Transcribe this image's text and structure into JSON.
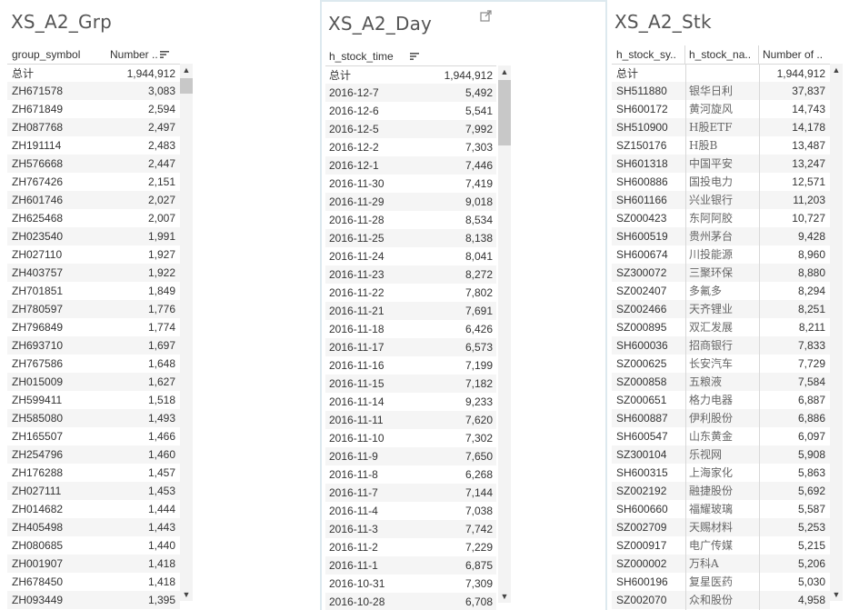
{
  "grp": {
    "title": "XS_A2_Grp",
    "col1": "group_symbol",
    "col2": "Number ..",
    "total_label": "总计",
    "total_value": "1,944,912",
    "rows": [
      [
        "ZH671578",
        "3,083"
      ],
      [
        "ZH671849",
        "2,594"
      ],
      [
        "ZH087768",
        "2,497"
      ],
      [
        "ZH191114",
        "2,483"
      ],
      [
        "ZH576668",
        "2,447"
      ],
      [
        "ZH767426",
        "2,151"
      ],
      [
        "ZH601746",
        "2,027"
      ],
      [
        "ZH625468",
        "2,007"
      ],
      [
        "ZH023540",
        "1,991"
      ],
      [
        "ZH027110",
        "1,927"
      ],
      [
        "ZH403757",
        "1,922"
      ],
      [
        "ZH701851",
        "1,849"
      ],
      [
        "ZH780597",
        "1,776"
      ],
      [
        "ZH796849",
        "1,774"
      ],
      [
        "ZH693710",
        "1,697"
      ],
      [
        "ZH767586",
        "1,648"
      ],
      [
        "ZH015009",
        "1,627"
      ],
      [
        "ZH599411",
        "1,518"
      ],
      [
        "ZH585080",
        "1,493"
      ],
      [
        "ZH165507",
        "1,466"
      ],
      [
        "ZH254796",
        "1,460"
      ],
      [
        "ZH176288",
        "1,457"
      ],
      [
        "ZH027111",
        "1,453"
      ],
      [
        "ZH014682",
        "1,444"
      ],
      [
        "ZH405498",
        "1,443"
      ],
      [
        "ZH080685",
        "1,440"
      ],
      [
        "ZH001907",
        "1,418"
      ],
      [
        "ZH678450",
        "1,418"
      ],
      [
        "ZH093449",
        "1,395"
      ]
    ]
  },
  "day": {
    "title": "XS_A2_Day",
    "col1": "h_stock_time",
    "total_label": "总计",
    "total_value": "1,944,912",
    "rows": [
      [
        "2016-12-7",
        "5,492"
      ],
      [
        "2016-12-6",
        "5,541"
      ],
      [
        "2016-12-5",
        "7,992"
      ],
      [
        "2016-12-2",
        "7,303"
      ],
      [
        "2016-12-1",
        "7,446"
      ],
      [
        "2016-11-30",
        "7,419"
      ],
      [
        "2016-11-29",
        "9,018"
      ],
      [
        "2016-11-28",
        "8,534"
      ],
      [
        "2016-11-25",
        "8,138"
      ],
      [
        "2016-11-24",
        "8,041"
      ],
      [
        "2016-11-23",
        "8,272"
      ],
      [
        "2016-11-22",
        "7,802"
      ],
      [
        "2016-11-21",
        "7,691"
      ],
      [
        "2016-11-18",
        "6,426"
      ],
      [
        "2016-11-17",
        "6,573"
      ],
      [
        "2016-11-16",
        "7,199"
      ],
      [
        "2016-11-15",
        "7,182"
      ],
      [
        "2016-11-14",
        "9,233"
      ],
      [
        "2016-11-11",
        "7,620"
      ],
      [
        "2016-11-10",
        "7,302"
      ],
      [
        "2016-11-9",
        "7,650"
      ],
      [
        "2016-11-8",
        "6,268"
      ],
      [
        "2016-11-7",
        "7,144"
      ],
      [
        "2016-11-4",
        "7,038"
      ],
      [
        "2016-11-3",
        "7,742"
      ],
      [
        "2016-11-2",
        "7,229"
      ],
      [
        "2016-11-1",
        "6,875"
      ],
      [
        "2016-10-31",
        "7,309"
      ],
      [
        "2016-10-28",
        "6,708"
      ]
    ]
  },
  "stk": {
    "title": "XS_A2_Stk",
    "col1": "h_stock_sy..",
    "col2": "h_stock_na..",
    "col3": "Number of ..",
    "total_label": "总计",
    "total_value": "1,944,912",
    "rows": [
      [
        "SH511880",
        "银华日利",
        "37,837"
      ],
      [
        "SH600172",
        "黄河旋风",
        "14,743"
      ],
      [
        "SH510900",
        "H股ETF",
        "14,178"
      ],
      [
        "SZ150176",
        "H股B",
        "13,487"
      ],
      [
        "SH601318",
        "中国平安",
        "13,247"
      ],
      [
        "SH600886",
        "国投电力",
        "12,571"
      ],
      [
        "SH601166",
        "兴业银行",
        "11,203"
      ],
      [
        "SZ000423",
        "东阿阿胶",
        "10,727"
      ],
      [
        "SH600519",
        "贵州茅台",
        "9,428"
      ],
      [
        "SH600674",
        "川投能源",
        "8,960"
      ],
      [
        "SZ300072",
        "三聚环保",
        "8,880"
      ],
      [
        "SZ002407",
        "多氟多",
        "8,294"
      ],
      [
        "SZ002466",
        "天齐锂业",
        "8,251"
      ],
      [
        "SZ000895",
        "双汇发展",
        "8,211"
      ],
      [
        "SH600036",
        "招商银行",
        "7,833"
      ],
      [
        "SZ000625",
        "长安汽车",
        "7,729"
      ],
      [
        "SZ000858",
        "五粮液",
        "7,584"
      ],
      [
        "SZ000651",
        "格力电器",
        "6,887"
      ],
      [
        "SH600887",
        "伊利股份",
        "6,886"
      ],
      [
        "SH600547",
        "山东黄金",
        "6,097"
      ],
      [
        "SZ300104",
        "乐视网",
        "5,908"
      ],
      [
        "SH600315",
        "上海家化",
        "5,863"
      ],
      [
        "SZ002192",
        "融捷股份",
        "5,692"
      ],
      [
        "SH600660",
        "福耀玻璃",
        "5,587"
      ],
      [
        "SZ002709",
        "天赐材料",
        "5,253"
      ],
      [
        "SZ000917",
        "电广传媒",
        "5,215"
      ],
      [
        "SZ000002",
        "万科A",
        "5,206"
      ],
      [
        "SH600196",
        "复星医药",
        "5,030"
      ],
      [
        "SZ002070",
        "众和股份",
        "4,958"
      ]
    ]
  },
  "colors": {
    "alt_row": "#f5f5f5",
    "scroll_thumb": "#c8c8c8",
    "panel_border": "#dde9ef"
  },
  "icons": {
    "sort": "sort-descending-icon",
    "popout": "popout-icon",
    "scroll_up": "chevron-up-icon",
    "scroll_down": "chevron-down-icon"
  }
}
